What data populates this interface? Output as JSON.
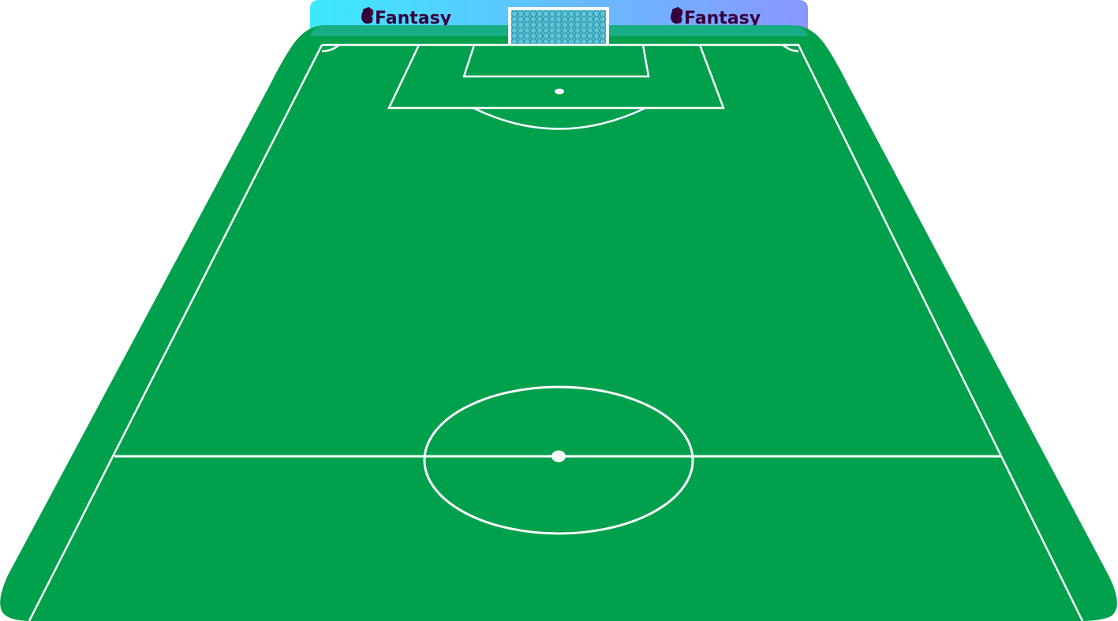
{
  "sponsor_board": {
    "left_brand": "Fantasy",
    "right_brand": "Fantasy",
    "gradient_start": "#3de8ff",
    "gradient_end": "#8a96ff",
    "logo_color": "#37003c"
  },
  "pitch": {
    "grass_color": "#00a04d",
    "line_color": "#ffffff",
    "net_color": "#2aa6b8"
  }
}
